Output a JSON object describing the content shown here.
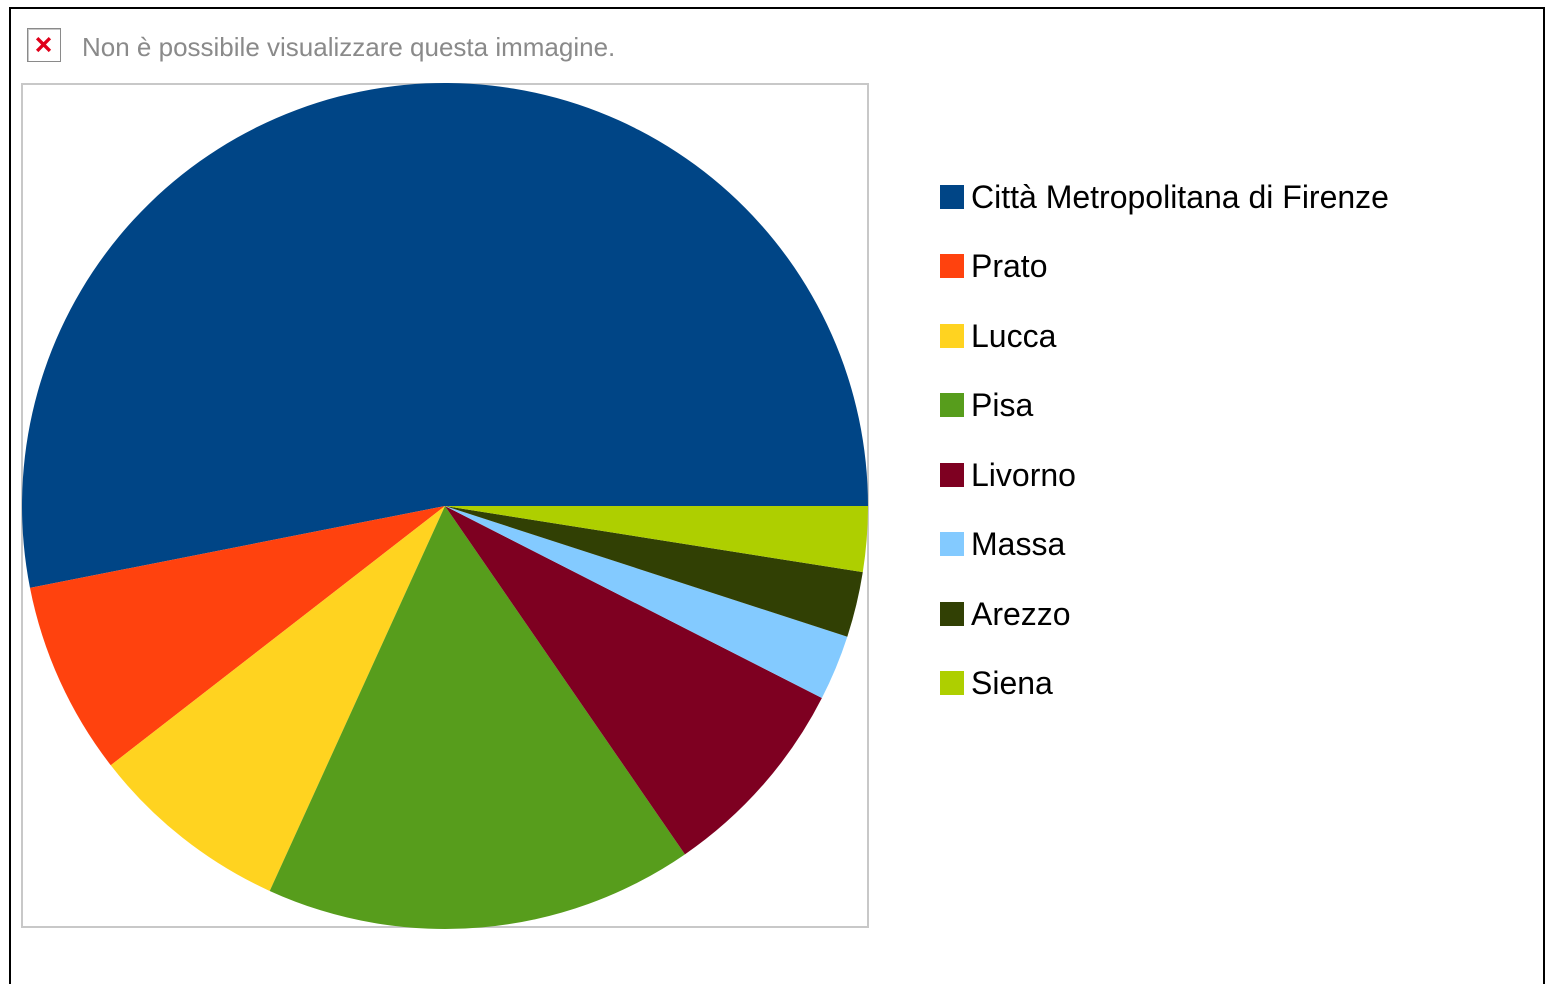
{
  "placeholder": {
    "message": "Non è possibile visualizzare questa immagine.",
    "icon": "broken-image-icon"
  },
  "chart_data": {
    "type": "pie",
    "start_angle_deg": 0,
    "direction": "counterclockwise",
    "legend_position": "right",
    "categories": [
      "Città Metropolitana di Firenze",
      "Prato",
      "Lucca",
      "Pisa",
      "Livorno",
      "Massa",
      "Arezzo",
      "Siena"
    ],
    "values": [
      53.1,
      7.4,
      7.7,
      16.4,
      7.9,
      2.5,
      2.5,
      2.5
    ],
    "colors": [
      "#004586",
      "#FF420E",
      "#FFD320",
      "#579D1C",
      "#7E0021",
      "#83CAFF",
      "#314004",
      "#AECF00"
    ]
  }
}
